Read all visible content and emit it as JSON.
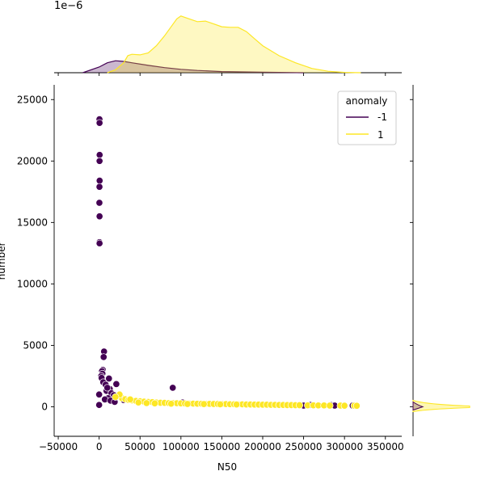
{
  "chart_data": {
    "type": "scatter",
    "title": "",
    "xlabel": "N50",
    "ylabel": "number",
    "xlim": [
      -55000,
      370000
    ],
    "ylim": [
      -2400,
      26200
    ],
    "x_ticks": [
      -50000,
      0,
      50000,
      100000,
      150000,
      200000,
      250000,
      300000,
      350000
    ],
    "x_tick_labels": [
      "−50000",
      "0",
      "50000",
      "100000",
      "150000",
      "200000",
      "250000",
      "300000",
      "350000"
    ],
    "y_ticks": [
      0,
      5000,
      10000,
      15000,
      20000,
      25000
    ],
    "y_tick_labels": [
      "0",
      "5000",
      "10000",
      "15000",
      "20000",
      "25000"
    ],
    "top_density_offset_label": "1e−6",
    "legend": {
      "title": "anomaly",
      "position": "top-right",
      "entries": [
        {
          "label": "-1",
          "color": "#440154"
        },
        {
          "label": "1",
          "color": "#fde725"
        }
      ]
    },
    "grid": false,
    "series": [
      {
        "name": "-1",
        "color": "#440154",
        "points": [
          [
            400,
            23400
          ],
          [
            500,
            23100
          ],
          [
            600,
            20500
          ],
          [
            500,
            20000
          ],
          [
            600,
            18400
          ],
          [
            400,
            17900
          ],
          [
            300,
            16600
          ],
          [
            500,
            15500
          ],
          [
            400,
            13400
          ],
          [
            500,
            13300
          ],
          [
            6000,
            4500
          ],
          [
            5500,
            4050
          ],
          [
            4500,
            3000
          ],
          [
            3500,
            2900
          ],
          [
            4000,
            2700
          ],
          [
            2500,
            2500
          ],
          [
            3000,
            2350
          ],
          [
            5000,
            2000
          ],
          [
            8000,
            1800
          ],
          [
            12000,
            2300
          ],
          [
            21000,
            1850
          ],
          [
            13000,
            1450
          ],
          [
            9000,
            1300
          ],
          [
            15000,
            1100
          ],
          [
            18000,
            950
          ],
          [
            25000,
            900
          ],
          [
            11000,
            700
          ],
          [
            7000,
            600
          ],
          [
            14000,
            500
          ],
          [
            19000,
            400
          ],
          [
            30000,
            550
          ],
          [
            0,
            1000
          ],
          [
            0,
            150
          ],
          [
            10000,
            1550
          ],
          [
            90000,
            1550
          ],
          [
            102000,
            350
          ],
          [
            75000,
            300
          ],
          [
            250000,
            100
          ],
          [
            258000,
            150
          ],
          [
            283000,
            150
          ],
          [
            288000,
            100
          ],
          [
            310000,
            100
          ]
        ]
      },
      {
        "name": "1",
        "color": "#fde725",
        "points": [
          [
            28000,
            700
          ],
          [
            32000,
            620
          ],
          [
            36000,
            560
          ],
          [
            40000,
            520
          ],
          [
            45000,
            480
          ],
          [
            50000,
            450
          ],
          [
            55000,
            420
          ],
          [
            60000,
            400
          ],
          [
            65000,
            380
          ],
          [
            70000,
            350
          ],
          [
            75000,
            330
          ],
          [
            80000,
            320
          ],
          [
            85000,
            300
          ],
          [
            90000,
            300
          ],
          [
            95000,
            290
          ],
          [
            100000,
            280
          ],
          [
            105000,
            270
          ],
          [
            110000,
            260
          ],
          [
            115000,
            260
          ],
          [
            120000,
            250
          ],
          [
            125000,
            250
          ],
          [
            130000,
            240
          ],
          [
            135000,
            240
          ],
          [
            140000,
            230
          ],
          [
            145000,
            230
          ],
          [
            150000,
            220
          ],
          [
            155000,
            220
          ],
          [
            160000,
            210
          ],
          [
            165000,
            210
          ],
          [
            170000,
            200
          ],
          [
            175000,
            200
          ],
          [
            180000,
            190
          ],
          [
            185000,
            190
          ],
          [
            190000,
            180
          ],
          [
            195000,
            180
          ],
          [
            200000,
            170
          ],
          [
            205000,
            170
          ],
          [
            210000,
            160
          ],
          [
            215000,
            160
          ],
          [
            220000,
            150
          ],
          [
            225000,
            150
          ],
          [
            230000,
            140
          ],
          [
            235000,
            140
          ],
          [
            240000,
            130
          ],
          [
            245000,
            130
          ],
          [
            255000,
            120
          ],
          [
            262000,
            120
          ],
          [
            268000,
            110
          ],
          [
            275000,
            110
          ],
          [
            282000,
            100
          ],
          [
            295000,
            100
          ],
          [
            300000,
            90
          ],
          [
            312000,
            90
          ],
          [
            315000,
            80
          ],
          [
            25000,
            1000
          ],
          [
            20000,
            800
          ],
          [
            38000,
            600
          ],
          [
            48000,
            350
          ],
          [
            58000,
            300
          ],
          [
            68000,
            280
          ],
          [
            88000,
            250
          ],
          [
            108000,
            230
          ],
          [
            128000,
            220
          ],
          [
            148000,
            200
          ],
          [
            168000,
            190
          ]
        ]
      }
    ],
    "marginal_x_density": [
      {
        "name": "-1",
        "color": "#440154",
        "x": [
          -20000,
          0,
          10000,
          20000,
          30000,
          40000,
          60000,
          80000,
          100000,
          120000,
          150000,
          200000,
          250000
        ],
        "density": [
          0,
          0.2,
          0.35,
          0.42,
          0.4,
          0.35,
          0.26,
          0.18,
          0.12,
          0.08,
          0.04,
          0.02,
          0
        ]
      },
      {
        "name": "1",
        "color": "#fde725",
        "x": [
          10000,
          20000,
          30000,
          35000,
          40000,
          50000,
          60000,
          70000,
          80000,
          90000,
          95000,
          100000,
          110000,
          120000,
          130000,
          140000,
          150000,
          160000,
          170000,
          180000,
          190000,
          200000,
          220000,
          240000,
          260000,
          280000,
          300000,
          320000
        ],
        "density": [
          0,
          0.1,
          0.35,
          0.6,
          0.65,
          0.63,
          0.7,
          0.95,
          1.3,
          1.7,
          1.9,
          2.0,
          1.9,
          1.8,
          1.82,
          1.72,
          1.62,
          1.6,
          1.6,
          1.45,
          1.2,
          0.95,
          0.6,
          0.35,
          0.15,
          0.05,
          0.01,
          0
        ]
      }
    ]
  }
}
